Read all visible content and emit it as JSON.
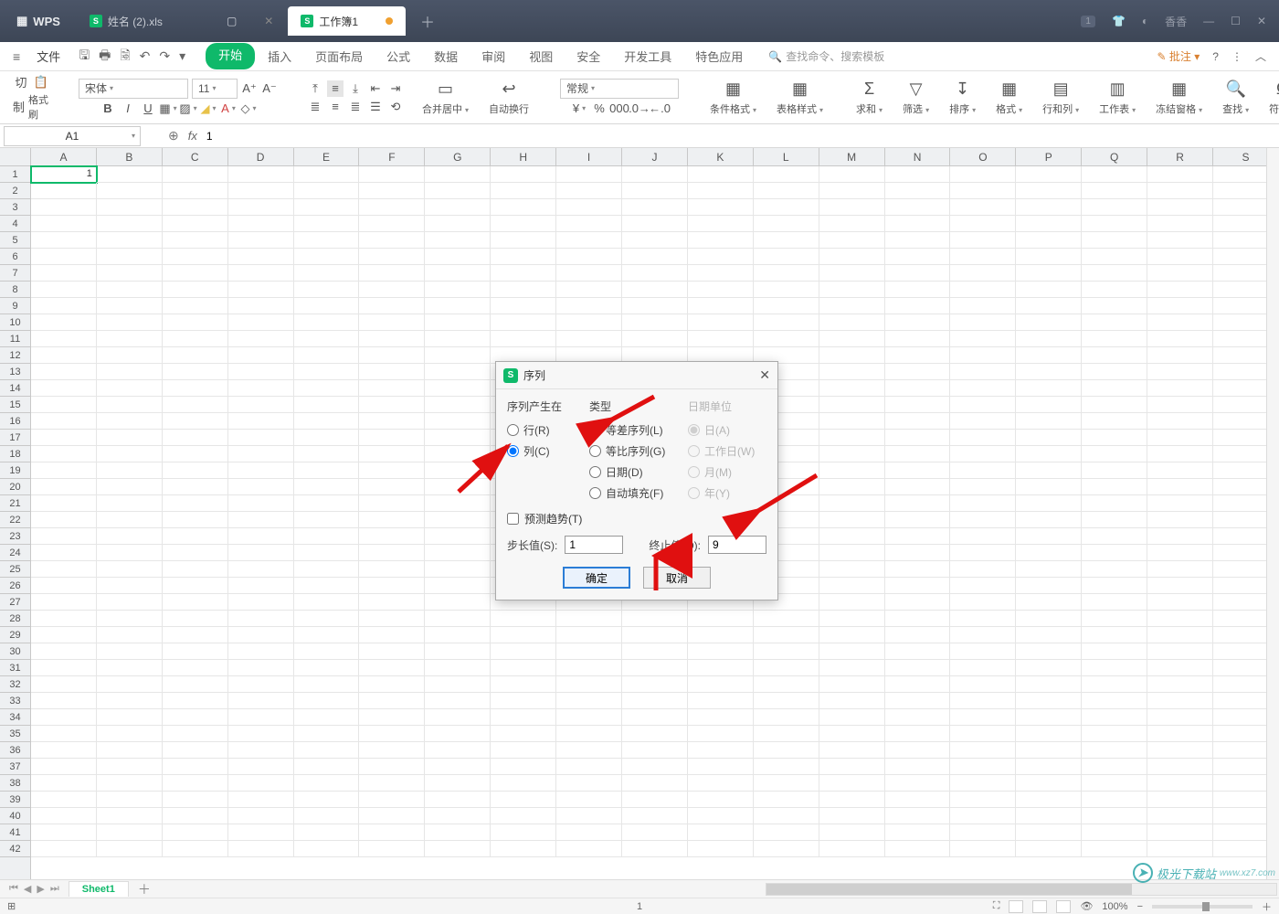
{
  "titlebar": {
    "app": "WPS",
    "tab1": "姓名 (2).xls",
    "tab2": "工作簿1",
    "badge": "1",
    "user": "香香"
  },
  "menubar": {
    "file": "文件",
    "tabs": [
      "开始",
      "插入",
      "页面布局",
      "公式",
      "数据",
      "审阅",
      "视图",
      "安全",
      "开发工具",
      "特色应用"
    ],
    "search_placeholder": "查找命令、搜索模板",
    "annotate": "批注"
  },
  "ribbon": {
    "cut": "切",
    "copy": "制",
    "brush": "格式刷",
    "font": "宋体",
    "size": "11",
    "mergecenter": "合并居中",
    "wrap": "自动换行",
    "numfmt": "常规",
    "condfmt": "条件格式",
    "tblstyle": "表格样式",
    "sum": "求和",
    "filter": "筛选",
    "sort": "排序",
    "format": "格式",
    "rowcol": "行和列",
    "worksheet": "工作表",
    "freeze": "冻结窗格",
    "find": "查找",
    "symbol": "符号"
  },
  "namebox": "A1",
  "formula": "1",
  "columns": [
    "A",
    "B",
    "C",
    "D",
    "E",
    "F",
    "G",
    "H",
    "I",
    "J",
    "K",
    "L",
    "M",
    "N",
    "O",
    "P",
    "Q",
    "R",
    "S"
  ],
  "cellA1": "1",
  "dialog": {
    "title": "序列",
    "g1_title": "序列产生在",
    "g1_row": "行(R)",
    "g1_col": "列(C)",
    "g2_title": "类型",
    "g2_arith": "等差序列(L)",
    "g2_geo": "等比序列(G)",
    "g2_date": "日期(D)",
    "g2_auto": "自动填充(F)",
    "g3_title": "日期单位",
    "g3_day": "日(A)",
    "g3_wday": "工作日(W)",
    "g3_month": "月(M)",
    "g3_year": "年(Y)",
    "predict": "预测趋势(T)",
    "step_label": "步长值(S):",
    "step_val": "1",
    "stop_label": "终止值(O):",
    "stop_val": "9",
    "ok": "确定",
    "cancel": "取消"
  },
  "sheettab": "Sheet1",
  "status_center": "1",
  "zoom": "100%",
  "watermark": "极光下载站",
  "watermark_url": "www.xz7.com"
}
